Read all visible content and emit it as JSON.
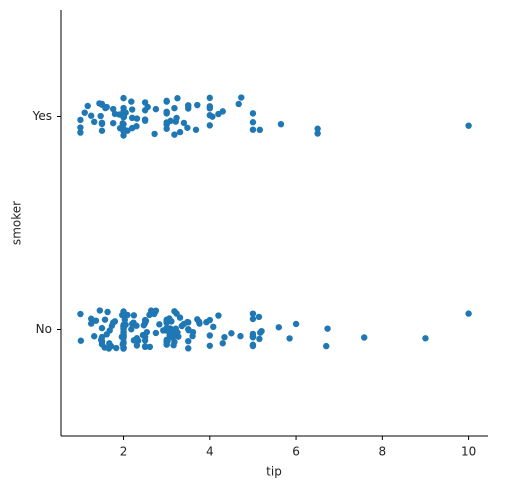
{
  "chart_data": {
    "type": "strip",
    "x_label": "tip",
    "y_label": "smoker",
    "categories": [
      "Yes",
      "No"
    ],
    "color": "#1f77b4",
    "values": [
      [
        3.0,
        1.76,
        3.21,
        2.0,
        1.98,
        1.76,
        4.67,
        2.0,
        3.0,
        2.0,
        10.0,
        2.5,
        3.48,
        1.5,
        2.5,
        4.0,
        3.5,
        1.0,
        1.5,
        5.0,
        3.0,
        2.0,
        4.0,
        4.3,
        2.0,
        2.0,
        1.0,
        2.09,
        3.0,
        2.0,
        6.5,
        1.5,
        1.44,
        2.2,
        3.0,
        4.06,
        3.18,
        4.0,
        2.3,
        1.17,
        4.2,
        2.0,
        3.0,
        2.75,
        2.2,
        3.68,
        5.65,
        2.18,
        1.0,
        3.0,
        1.5,
        3.0,
        2.0,
        1.61,
        2.0,
        1.1,
        5.0,
        6.5,
        1.8,
        3.25,
        2.56,
        2.5,
        3.4,
        4.73,
        4.0,
        1.58,
        2.0,
        3.5,
        2.2,
        1.25,
        3.23,
        5.16,
        3.09,
        3.0,
        2.0,
        2.31,
        1.9,
        2.01,
        1.5,
        3.5,
        1.47,
        2.72,
        3.71,
        2.0,
        3.31,
        2.5,
        4.0,
        1.32,
        5.0,
        2.05,
        1.92,
        1.5,
        3.18
      ],
      [
        1.01,
        1.66,
        3.5,
        3.31,
        3.61,
        4.71,
        2.0,
        3.12,
        1.96,
        3.23,
        1.71,
        5.0,
        1.57,
        3.0,
        3.02,
        3.92,
        1.67,
        3.71,
        3.5,
        3.35,
        4.08,
        2.75,
        2.23,
        7.58,
        3.18,
        2.34,
        2.0,
        2.0,
        4.3,
        3.0,
        1.45,
        2.5,
        3.0,
        2.45,
        3.27,
        3.6,
        2.0,
        3.07,
        2.31,
        5.0,
        2.24,
        2.54,
        3.06,
        1.32,
        5.6,
        3.0,
        5.0,
        6.0,
        2.05,
        3.0,
        2.5,
        2.6,
        5.2,
        1.56,
        4.34,
        3.51,
        3.0,
        1.5,
        1.76,
        6.73,
        3.21,
        2.0,
        1.98,
        3.76,
        2.64,
        3.15,
        2.47,
        1.0,
        2.01,
        2.09,
        1.97,
        3.0,
        3.14,
        5.0,
        2.2,
        1.25,
        3.08,
        4.0,
        3.0,
        2.71,
        3.0,
        3.4,
        1.83,
        5.0,
        2.03,
        5.17,
        2.0,
        4.0,
        5.85,
        3.0,
        1.5,
        1.8,
        2.92,
        2.31,
        1.68,
        2.5,
        2.0,
        2.52,
        4.2,
        1.48,
        2.0,
        2.0,
        2.18,
        1.5,
        2.83,
        1.5,
        2.0,
        3.25,
        1.25,
        2.0,
        2.0,
        2.75,
        3.5,
        6.7,
        5.0,
        5.0,
        2.3,
        1.5,
        1.36,
        1.63,
        1.73,
        2.0,
        2.5,
        2.0,
        2.74,
        2.0,
        2.0,
        5.14,
        5.0,
        3.75,
        2.61,
        2.0,
        3.5,
        2.5,
        2.0,
        2.0,
        3.0,
        3.48,
        2.24,
        4.5,
        1.61,
        2.0,
        10.0,
        3.16,
        5.15,
        3.18,
        4.0,
        3.11,
        2.0,
        9.0,
        2.5
      ]
    ],
    "xlim": [
      0.55,
      10.45
    ],
    "xticks": [
      2,
      4,
      6,
      8,
      10
    ]
  }
}
